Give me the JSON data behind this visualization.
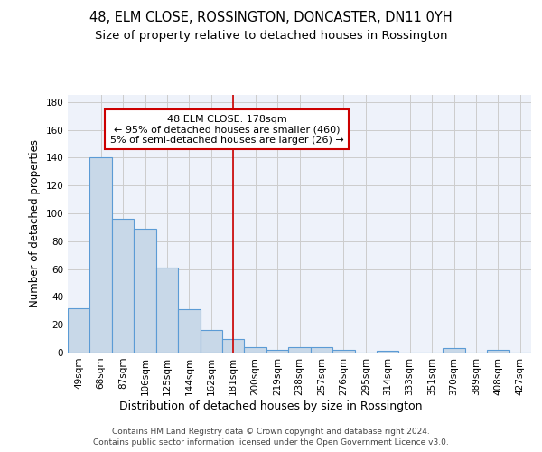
{
  "title1": "48, ELM CLOSE, ROSSINGTON, DONCASTER, DN11 0YH",
  "title2": "Size of property relative to detached houses in Rossington",
  "xlabel": "Distribution of detached houses by size in Rossington",
  "ylabel": "Number of detached properties",
  "categories": [
    "49sqm",
    "68sqm",
    "87sqm",
    "106sqm",
    "125sqm",
    "144sqm",
    "162sqm",
    "181sqm",
    "200sqm",
    "219sqm",
    "238sqm",
    "257sqm",
    "276sqm",
    "295sqm",
    "314sqm",
    "333sqm",
    "351sqm",
    "370sqm",
    "389sqm",
    "408sqm",
    "427sqm"
  ],
  "values": [
    32,
    140,
    96,
    89,
    61,
    31,
    16,
    10,
    4,
    2,
    4,
    4,
    2,
    0,
    1,
    0,
    0,
    3,
    0,
    2,
    0
  ],
  "bar_color": "#c8d8e8",
  "bar_edge_color": "#5b9bd5",
  "marker_line_index": 7,
  "marker_line_color": "#cc0000",
  "annotation_text": "48 ELM CLOSE: 178sqm\n← 95% of detached houses are smaller (460)\n5% of semi-detached houses are larger (26) →",
  "annotation_box_color": "white",
  "annotation_box_edge_color": "#cc0000",
  "ylim": [
    0,
    185
  ],
  "yticks": [
    0,
    20,
    40,
    60,
    80,
    100,
    120,
    140,
    160,
    180
  ],
  "grid_color": "#cccccc",
  "background_color": "#eef2fa",
  "footer_line1": "Contains HM Land Registry data © Crown copyright and database right 2024.",
  "footer_line2": "Contains public sector information licensed under the Open Government Licence v3.0.",
  "title1_fontsize": 10.5,
  "title2_fontsize": 9.5,
  "xlabel_fontsize": 9,
  "ylabel_fontsize": 8.5,
  "tick_fontsize": 7.5,
  "annotation_fontsize": 8,
  "footer_fontsize": 6.5
}
